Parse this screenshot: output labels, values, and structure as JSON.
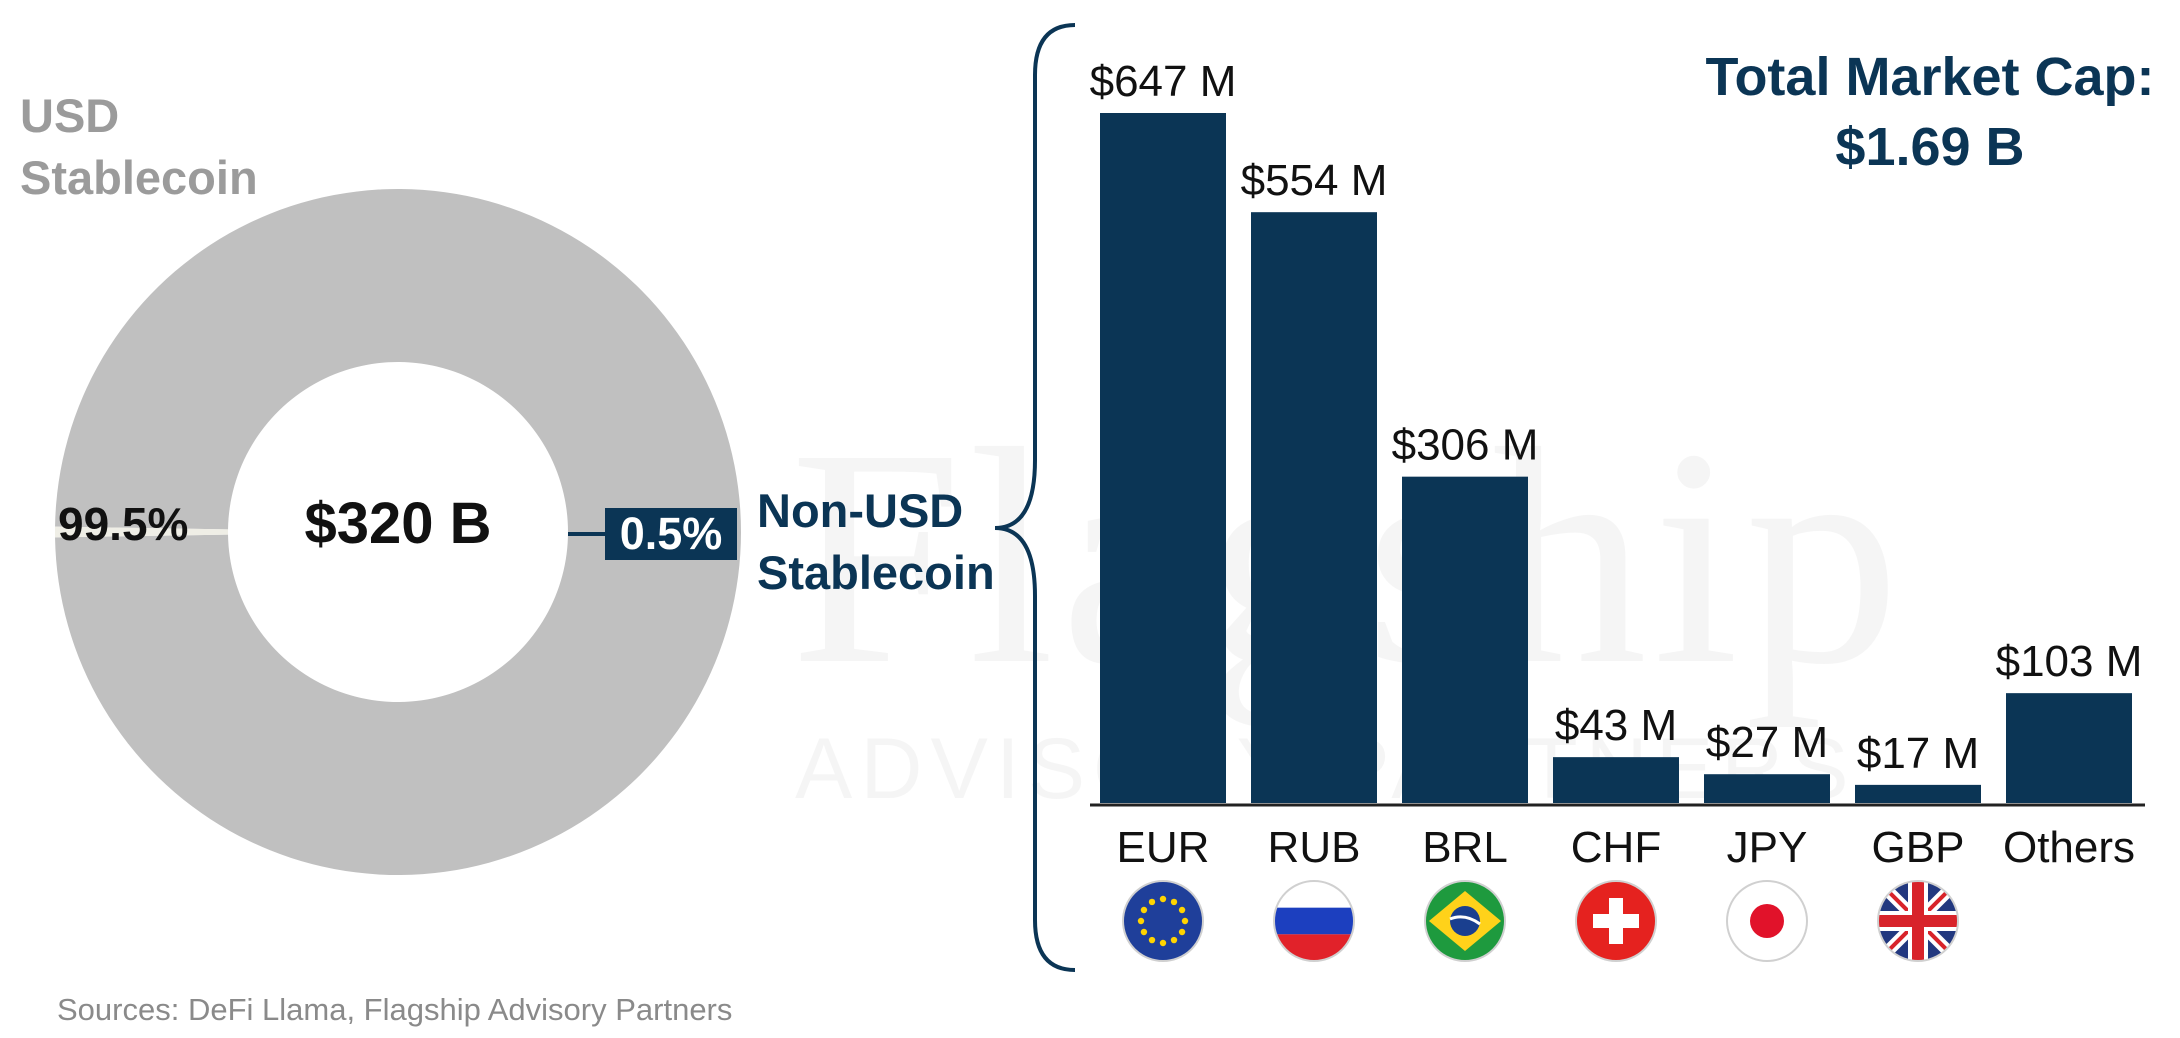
{
  "colors": {
    "navy": "#0b3555",
    "donut_gray": "#c0c0c0",
    "label_gray": "#9b9b9b"
  },
  "donut": {
    "usd_label": "USD\nStablecoin",
    "usd_pct": "99.5%",
    "center_value": "$320 B",
    "non_usd_pct": "0.5%",
    "non_usd_label": "Non-USD\nStablecoin"
  },
  "total_market_cap": {
    "line1": "Total Market Cap:",
    "line2": "$1.69 B"
  },
  "source": "Sources: DeFi Llama, Flagship Advisory Partners",
  "watermark": {
    "word": "Flagship",
    "sub": "ADVISORY PARTNERS"
  },
  "flag_icons": [
    "eu-flag-icon",
    "russia-flag-icon",
    "brazil-flag-icon",
    "switzerland-flag-icon",
    "japan-flag-icon",
    "uk-flag-icon"
  ],
  "chart_data": [
    {
      "type": "pie",
      "categories": [
        "USD Stablecoin",
        "Non-USD Stablecoin"
      ],
      "values": [
        99.5,
        0.5
      ],
      "center_label": "$320 B"
    },
    {
      "type": "bar",
      "categories": [
        "EUR",
        "RUB",
        "BRL",
        "CHF",
        "JPY",
        "GBP",
        "Others"
      ],
      "values": [
        647,
        554,
        306,
        43,
        27,
        17,
        103
      ],
      "value_labels": [
        "$647 M",
        "$554 M",
        "$306 M",
        "$43 M",
        "$27 M",
        "$17 M",
        "$103 M"
      ],
      "ylim": [
        0,
        647
      ],
      "title": "",
      "xlabel": "",
      "ylabel": "",
      "grid": false
    }
  ]
}
